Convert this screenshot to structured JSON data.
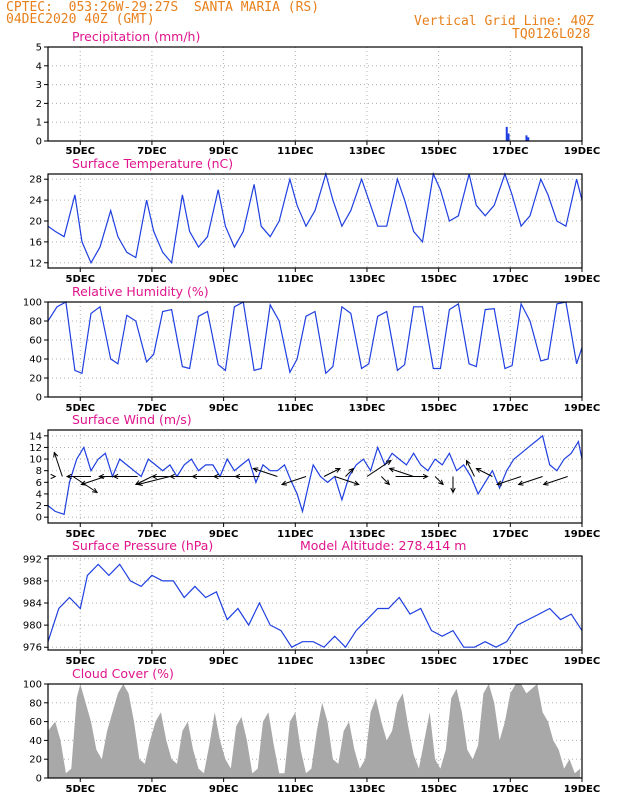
{
  "header": {
    "line1_left": "CPTEC:  053:26W-29:27S  SANTA MARIA (RS)",
    "line2_left": "04DEC2020 40Z (GMT)",
    "line1_right": "Vertical Grid Line: 40Z",
    "line2_right": "TQ0126L028"
  },
  "colors": {
    "line": "#1f3fe0",
    "title": "#e0148c",
    "header": "#e8801c",
    "cloud": "#a8a8a8",
    "grid": "#b0b0b0"
  },
  "x_ticks": [
    "5DEC",
    "7DEC",
    "9DEC",
    "11DEC",
    "13DEC",
    "15DEC",
    "17DEC",
    "19DEC"
  ],
  "chart_data": [
    {
      "id": "precip",
      "type": "bar",
      "title": "Precipitation (mm/h)",
      "ylim": [
        0,
        5
      ],
      "yticks": [
        0,
        1,
        2,
        3,
        4,
        5
      ],
      "x_range_days": [
        4.1,
        19.0
      ],
      "series": [
        {
          "x": [
            16.9,
            16.95,
            17.45,
            17.5
          ],
          "values": [
            0.75,
            0.4,
            0.3,
            0.2
          ]
        }
      ]
    },
    {
      "id": "temp",
      "type": "line",
      "title": "Surface Temperature (nC)",
      "ylim": [
        11,
        29
      ],
      "yticks": [
        12,
        16,
        20,
        24,
        28
      ],
      "x_range_days": [
        4.1,
        19.0
      ],
      "series": [
        {
          "x": [
            4.1,
            4.3,
            4.55,
            4.85,
            5.05,
            5.3,
            5.55,
            5.85,
            6.05,
            6.3,
            6.55,
            6.85,
            7.05,
            7.3,
            7.55,
            7.85,
            8.05,
            8.3,
            8.55,
            8.85,
            9.05,
            9.3,
            9.55,
            9.85,
            10.05,
            10.3,
            10.55,
            10.85,
            11.05,
            11.3,
            11.55,
            11.85,
            12.05,
            12.3,
            12.55,
            12.85,
            13.05,
            13.3,
            13.55,
            13.85,
            14.05,
            14.3,
            14.55,
            14.85,
            15.05,
            15.3,
            15.55,
            15.85,
            16.05,
            16.3,
            16.55,
            16.85,
            17.05,
            17.3,
            17.55,
            17.85,
            18.05,
            18.3,
            18.55,
            18.85,
            19.0
          ],
          "values": [
            19,
            18,
            17,
            25,
            16,
            12,
            15,
            22,
            17,
            14,
            13,
            24,
            18,
            14,
            12,
            25,
            18,
            15,
            17,
            26,
            19,
            15,
            18,
            27,
            19,
            17,
            20,
            28,
            23,
            19,
            22,
            29,
            24,
            19,
            22,
            28,
            24,
            19,
            19,
            28,
            24,
            18,
            16,
            29,
            26,
            20,
            21,
            29,
            23,
            21,
            23,
            29,
            25,
            19,
            21,
            28,
            25,
            20,
            19,
            28,
            24
          ]
        }
      ]
    },
    {
      "id": "rh",
      "type": "line",
      "title": "Relative Humidity (%)",
      "ylim": [
        0,
        100
      ],
      "yticks": [
        0,
        20,
        40,
        60,
        80,
        100
      ],
      "x_range_days": [
        4.1,
        19.0
      ],
      "series": [
        {
          "x": [
            4.1,
            4.35,
            4.6,
            4.85,
            5.05,
            5.3,
            5.55,
            5.85,
            6.05,
            6.3,
            6.55,
            6.85,
            7.05,
            7.3,
            7.55,
            7.85,
            8.05,
            8.3,
            8.55,
            8.85,
            9.05,
            9.3,
            9.55,
            9.85,
            10.05,
            10.3,
            10.55,
            10.85,
            11.05,
            11.3,
            11.55,
            11.85,
            12.05,
            12.3,
            12.55,
            12.85,
            13.05,
            13.3,
            13.55,
            13.85,
            14.05,
            14.3,
            14.55,
            14.85,
            15.05,
            15.3,
            15.55,
            15.85,
            16.05,
            16.3,
            16.55,
            16.85,
            17.05,
            17.3,
            17.55,
            17.85,
            18.05,
            18.3,
            18.55,
            18.85,
            19.0
          ],
          "values": [
            80,
            95,
            100,
            28,
            25,
            88,
            95,
            40,
            35,
            86,
            80,
            37,
            45,
            90,
            92,
            32,
            30,
            85,
            90,
            34,
            28,
            95,
            100,
            28,
            30,
            97,
            80,
            26,
            40,
            85,
            90,
            25,
            32,
            95,
            88,
            30,
            35,
            85,
            90,
            28,
            34,
            95,
            95,
            30,
            30,
            92,
            98,
            35,
            32,
            92,
            93,
            30,
            33,
            98,
            80,
            38,
            40,
            98,
            100,
            35,
            52
          ]
        }
      ]
    },
    {
      "id": "wind",
      "type": "line",
      "title": "Surface Wind (m/s)",
      "ylim": [
        -1,
        15
      ],
      "yticks": [
        0,
        2,
        4,
        6,
        8,
        10,
        12,
        14
      ],
      "x_range_days": [
        4.1,
        19.0
      ],
      "series": [
        {
          "x": [
            4.1,
            4.3,
            4.55,
            4.7,
            4.9,
            5.1,
            5.3,
            5.5,
            5.7,
            5.9,
            6.1,
            6.3,
            6.5,
            6.7,
            6.9,
            7.1,
            7.3,
            7.5,
            7.7,
            7.9,
            8.1,
            8.3,
            8.5,
            8.7,
            8.9,
            9.1,
            9.3,
            9.5,
            9.7,
            9.9,
            10.1,
            10.3,
            10.5,
            10.7,
            10.9,
            11.05,
            11.2,
            11.35,
            11.5,
            11.7,
            11.9,
            12.1,
            12.3,
            12.5,
            12.7,
            12.9,
            13.1,
            13.3,
            13.5,
            13.7,
            13.9,
            14.1,
            14.3,
            14.5,
            14.7,
            14.9,
            15.1,
            15.3,
            15.5,
            15.7,
            15.9,
            16.1,
            16.3,
            16.5,
            16.7,
            16.9,
            17.1,
            17.3,
            17.5,
            17.7,
            17.9,
            18.1,
            18.3,
            18.5,
            18.7,
            18.9,
            19.0
          ],
          "values": [
            2,
            1,
            0.5,
            6,
            10,
            12,
            8,
            10,
            11,
            7,
            10,
            9,
            8,
            7,
            10,
            9,
            8,
            9,
            7,
            9,
            10,
            8,
            9,
            9,
            7,
            10,
            8,
            9,
            10,
            6,
            9,
            8,
            8,
            9,
            6,
            4,
            1,
            5,
            9,
            7,
            6,
            7,
            3,
            7,
            9,
            10,
            8,
            12,
            9,
            11,
            10,
            9,
            11,
            9,
            8,
            10,
            9,
            11,
            8,
            9,
            7,
            4,
            6,
            8,
            5,
            8,
            10,
            11,
            12,
            13,
            14,
            9,
            8,
            10,
            11,
            13,
            10
          ]
        }
      ],
      "vectors": {
        "x": [
          4.3,
          4.5,
          4.8,
          5.3,
          5.7,
          6.2,
          6.6,
          7.0,
          7.5,
          7.9,
          8.4,
          8.8,
          9.4,
          10.0,
          10.5,
          11.3,
          11.8,
          12.1,
          12.4,
          13.0,
          13.4,
          13.8,
          14.3,
          14.9,
          15.4,
          16.0,
          16.5,
          17.3,
          17.9,
          18.6
        ],
        "u": [
          0,
          -1,
          3,
          -3,
          -3,
          -3,
          -3,
          -2,
          -4,
          -4,
          -4,
          -3,
          -3,
          -3,
          -3,
          -3,
          2,
          3,
          1,
          3,
          1,
          4,
          -3,
          1,
          0,
          -1,
          -2,
          -3,
          -3,
          -3
        ],
        "v": [
          0,
          3,
          -2,
          0,
          -1,
          0,
          0,
          -1,
          -1,
          0,
          0,
          0,
          0,
          0,
          1,
          -1,
          1,
          -1,
          1,
          2,
          -1,
          0,
          1,
          -1,
          -2,
          2,
          1,
          -1,
          -1,
          -1
        ]
      }
    },
    {
      "id": "pressure",
      "type": "line",
      "title": "Surface Pressure (hPa)",
      "annotation": "Model Altitude: 278.414 m",
      "ylim": [
        975.5,
        992.5
      ],
      "yticks": [
        976,
        980,
        984,
        988,
        992
      ],
      "x_range_days": [
        4.1,
        19.0
      ],
      "series": [
        {
          "x": [
            4.1,
            4.4,
            4.7,
            5.0,
            5.2,
            5.5,
            5.8,
            6.1,
            6.4,
            6.7,
            7.0,
            7.3,
            7.6,
            7.9,
            8.2,
            8.5,
            8.8,
            9.1,
            9.4,
            9.7,
            10.0,
            10.3,
            10.6,
            10.9,
            11.2,
            11.5,
            11.8,
            12.1,
            12.4,
            12.7,
            13.0,
            13.3,
            13.6,
            13.9,
            14.2,
            14.5,
            14.8,
            15.1,
            15.4,
            15.7,
            16.0,
            16.3,
            16.6,
            16.9,
            17.2,
            17.5,
            17.8,
            18.1,
            18.4,
            18.7,
            19.0
          ],
          "values": [
            977,
            983,
            985,
            983,
            989,
            991,
            989,
            991,
            988,
            987,
            989,
            988,
            988,
            985,
            987,
            985,
            986,
            981,
            983,
            980,
            984,
            980,
            979,
            976,
            977,
            977,
            976,
            978,
            976,
            979,
            981,
            983,
            983,
            985,
            982,
            983,
            979,
            978,
            979,
            976,
            976,
            977,
            976,
            977,
            980,
            981,
            982,
            983,
            981,
            982,
            979
          ]
        }
      ]
    },
    {
      "id": "cloud",
      "type": "area",
      "title": "Cloud Cover (%)",
      "ylim": [
        0,
        100
      ],
      "yticks": [
        0,
        20,
        40,
        60,
        80,
        100
      ],
      "x_range_days": [
        4.1,
        19.0
      ],
      "series": [
        {
          "x": [
            4.1,
            4.3,
            4.45,
            4.6,
            4.75,
            4.9,
            5.0,
            5.15,
            5.3,
            5.45,
            5.6,
            5.75,
            5.9,
            6.05,
            6.2,
            6.35,
            6.5,
            6.65,
            6.8,
            6.95,
            7.1,
            7.25,
            7.4,
            7.55,
            7.7,
            7.85,
            8.0,
            8.15,
            8.3,
            8.45,
            8.6,
            8.75,
            8.9,
            9.05,
            9.2,
            9.35,
            9.5,
            9.65,
            9.8,
            9.95,
            10.1,
            10.25,
            10.4,
            10.55,
            10.7,
            10.85,
            11.0,
            11.15,
            11.3,
            11.45,
            11.6,
            11.75,
            11.9,
            12.05,
            12.2,
            12.35,
            12.5,
            12.65,
            12.8,
            12.95,
            13.1,
            13.25,
            13.4,
            13.55,
            13.7,
            13.85,
            14.0,
            14.15,
            14.3,
            14.45,
            14.6,
            14.75,
            14.9,
            15.05,
            15.2,
            15.35,
            15.5,
            15.65,
            15.8,
            15.95,
            16.1,
            16.25,
            16.4,
            16.55,
            16.7,
            16.85,
            17.0,
            17.15,
            17.3,
            17.45,
            17.6,
            17.75,
            17.9,
            18.05,
            18.2,
            18.35,
            18.5,
            18.65,
            18.8,
            18.95
          ],
          "values": [
            50,
            60,
            40,
            5,
            10,
            85,
            100,
            80,
            60,
            30,
            20,
            50,
            70,
            90,
            100,
            90,
            60,
            20,
            15,
            40,
            60,
            70,
            40,
            20,
            15,
            50,
            60,
            30,
            10,
            5,
            35,
            70,
            40,
            20,
            10,
            55,
            65,
            40,
            5,
            10,
            60,
            70,
            35,
            5,
            5,
            60,
            70,
            30,
            5,
            10,
            50,
            80,
            60,
            20,
            15,
            50,
            60,
            30,
            10,
            20,
            70,
            85,
            60,
            40,
            50,
            80,
            90,
            55,
            25,
            10,
            40,
            70,
            20,
            10,
            30,
            85,
            95,
            70,
            30,
            20,
            35,
            90,
            100,
            80,
            40,
            60,
            90,
            100,
            100,
            90,
            95,
            100,
            70,
            60,
            40,
            30,
            10,
            20,
            5,
            10
          ]
        }
      ]
    }
  ]
}
